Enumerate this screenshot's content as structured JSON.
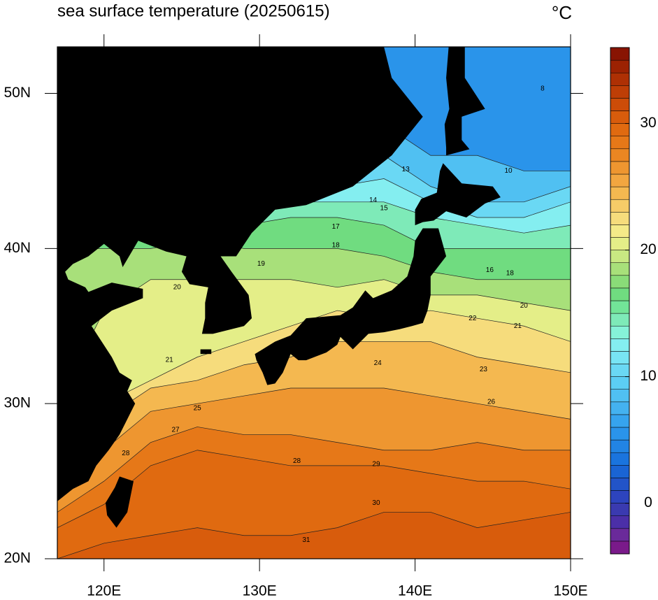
{
  "map": {
    "title": "sea surface temperature (20250615)",
    "unit": "°C",
    "lonlim": [
      117,
      150
    ],
    "latlim": [
      20,
      53
    ],
    "xticks": [
      {
        "value": 120,
        "label": "120E"
      },
      {
        "value": 130,
        "label": "130E"
      },
      {
        "value": 140,
        "label": "140E"
      },
      {
        "value": 150,
        "label": "150E"
      }
    ],
    "yticks": [
      {
        "value": 20,
        "label": "20N"
      },
      {
        "value": 30,
        "label": "30N"
      },
      {
        "value": 40,
        "label": "40N"
      },
      {
        "value": 50,
        "label": "50N"
      }
    ],
    "colorbar": {
      "lim": [
        -4,
        36
      ],
      "ticks": [
        0,
        10,
        20,
        30
      ],
      "colors": [
        "#7a1a8a",
        "#6a2a9a",
        "#4b2fa8",
        "#3a3ab0",
        "#2d44be",
        "#2254c8",
        "#1a64d4",
        "#1a74de",
        "#2284e4",
        "#2a94ea",
        "#36a4ee",
        "#44b2f0",
        "#50c0f2",
        "#5ccef4",
        "#6ad8f4",
        "#78e4f4",
        "#84eef0",
        "#86f2d8",
        "#7eeab8",
        "#72e498",
        "#70dc80",
        "#8adc78",
        "#a8e07a",
        "#c8e882",
        "#e4ee88",
        "#f4ea88",
        "#f6dc7c",
        "#f6cc68",
        "#f4b850",
        "#f2a640",
        "#ee9630",
        "#ea8622",
        "#e67818",
        "#e06a10",
        "#d85c0c",
        "#cc4c08",
        "#be3e06",
        "#ae3004",
        "#9c2202",
        "#881402"
      ]
    },
    "isotherm_lons": [
      117,
      120,
      123,
      126,
      129,
      132,
      135,
      138,
      141,
      144,
      147,
      150
    ],
    "isotherms": [
      {
        "value": 5,
        "lat": [
          53,
          53,
          53,
          53,
          53,
          53,
          53,
          53,
          53,
          53,
          53,
          53
        ]
      },
      {
        "value": 8,
        "lat": [
          48,
          48,
          48,
          48,
          48,
          47,
          48,
          48,
          46,
          46,
          45,
          45
        ]
      },
      {
        "value": 10,
        "lat": [
          46,
          46,
          46,
          45,
          45,
          45.5,
          46,
          46,
          44,
          43,
          43,
          44
        ]
      },
      {
        "value": 12,
        "lat": [
          44,
          44,
          44,
          43,
          44,
          44,
          44,
          44.5,
          43,
          42,
          42,
          43
        ]
      },
      {
        "value": 14,
        "lat": [
          43,
          43,
          43,
          42,
          42.5,
          43,
          43,
          43,
          42,
          41.5,
          41,
          41.5
        ]
      },
      {
        "value": 16,
        "lat": [
          42,
          42,
          42,
          41,
          41.5,
          42,
          42,
          41.5,
          40,
          40,
          40,
          40
        ]
      },
      {
        "value": 18,
        "lat": [
          40,
          40,
          40,
          40.5,
          40,
          40,
          40,
          39.5,
          38.5,
          38,
          38,
          38
        ]
      },
      {
        "value": 20,
        "lat": [
          30,
          36,
          38,
          38,
          38,
          38,
          37.5,
          38,
          37,
          37,
          36.5,
          36
        ]
      },
      {
        "value": 22,
        "lat": [
          27,
          30,
          31.5,
          33,
          34,
          35,
          36,
          35.5,
          36,
          35.5,
          35,
          34
        ]
      },
      {
        "value": 24,
        "lat": [
          25,
          29,
          31,
          31.5,
          32.5,
          33,
          34,
          34,
          34,
          33,
          32.5,
          32
        ]
      },
      {
        "value": 26,
        "lat": [
          24,
          27,
          29.5,
          30,
          30.5,
          31,
          31,
          31,
          30.5,
          30,
          29.5,
          29
        ]
      },
      {
        "value": 28,
        "lat": [
          23,
          25,
          27.5,
          28.5,
          28,
          28,
          27.5,
          27,
          27,
          27.5,
          27,
          27
        ]
      },
      {
        "value": 29,
        "lat": [
          22,
          23.5,
          26,
          27,
          26.5,
          26,
          26,
          26,
          25.5,
          25,
          25,
          24.5
        ]
      },
      {
        "value": 30,
        "lat": [
          20,
          21,
          21.5,
          22,
          21.5,
          21.5,
          22,
          23,
          23,
          22,
          22.5,
          23
        ]
      }
    ],
    "contour_labels": [
      {
        "lon": 137.5,
        "lat": 26.1,
        "value": 29
      },
      {
        "lon": 137.5,
        "lat": 23.6,
        "value": 30
      },
      {
        "lon": 132.4,
        "lat": 26.3,
        "value": 28
      },
      {
        "lon": 124.6,
        "lat": 28.3,
        "value": 27
      },
      {
        "lon": 126.0,
        "lat": 29.7,
        "value": 25
      },
      {
        "lon": 144.9,
        "lat": 30.1,
        "value": 26
      },
      {
        "lon": 144.4,
        "lat": 32.2,
        "value": 23
      },
      {
        "lon": 143.7,
        "lat": 35.5,
        "value": 22
      },
      {
        "lon": 146.6,
        "lat": 35.0,
        "value": 21
      },
      {
        "lon": 147.0,
        "lat": 36.3,
        "value": 20
      },
      {
        "lon": 146.1,
        "lat": 38.4,
        "value": 18
      },
      {
        "lon": 144.8,
        "lat": 38.6,
        "value": 16
      },
      {
        "lon": 130.1,
        "lat": 39.0,
        "value": 19
      },
      {
        "lon": 134.9,
        "lat": 40.2,
        "value": 18
      },
      {
        "lon": 134.9,
        "lat": 41.4,
        "value": 17
      },
      {
        "lon": 138.0,
        "lat": 42.6,
        "value": 15
      },
      {
        "lon": 137.3,
        "lat": 43.1,
        "value": 14
      },
      {
        "lon": 139.4,
        "lat": 45.1,
        "value": 13
      },
      {
        "lon": 146.0,
        "lat": 45.0,
        "value": 10
      },
      {
        "lon": 148.2,
        "lat": 50.3,
        "value": 8
      },
      {
        "lon": 133.0,
        "lat": 21.2,
        "value": 31
      },
      {
        "lon": 137.6,
        "lat": 32.6,
        "value": 24
      },
      {
        "lon": 124.2,
        "lat": 32.8,
        "value": 21
      },
      {
        "lon": 124.7,
        "lat": 37.5,
        "value": 20
      },
      {
        "lon": 121.4,
        "lat": 26.8,
        "value": 28
      }
    ]
  }
}
